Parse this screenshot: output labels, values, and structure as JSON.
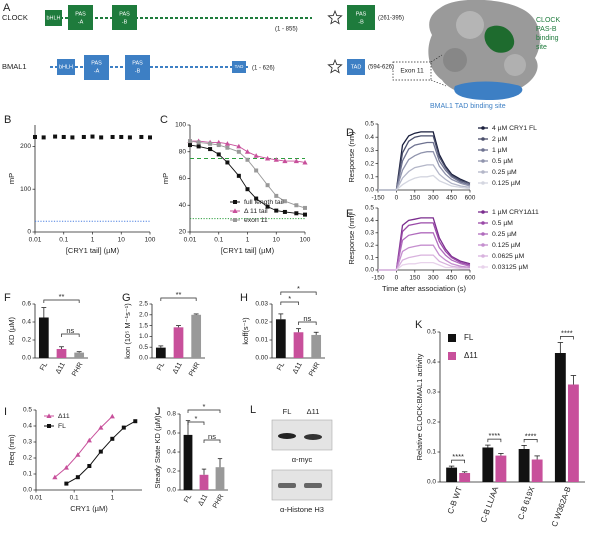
{
  "panels": {
    "A": {
      "panel_label": "A",
      "clock": {
        "name": "CLOCK",
        "domains": [
          [
            "bHLH"
          ],
          [
            "PAS",
            "-A"
          ],
          [
            "PAS",
            "-B"
          ]
        ],
        "range": "(1 - 855)",
        "fragment": [
          "PAS",
          "-B"
        ],
        "fragment_range": "(261-395)"
      },
      "bmal1": {
        "name": "BMAL1",
        "domains": [
          [
            "bHLH"
          ],
          [
            "PAS",
            "-A"
          ],
          [
            "PAS",
            "-B"
          ],
          [
            "TAD"
          ]
        ],
        "range": "(1 - 626)",
        "fragment": [
          "TAD"
        ],
        "fragment_range": "(594-626)"
      },
      "structure": {
        "clock_site": [
          "CLOCK",
          "PAS-B",
          "binding",
          "site"
        ],
        "exon": "Exon 11",
        "bmal1_site": "BMAL1 TAD binding site"
      }
    },
    "L": {
      "panel_label": "L",
      "lanes": [
        "FL",
        "Δ11"
      ],
      "blots": [
        "α-myc",
        "α-Histone H3"
      ]
    }
  },
  "chart_data": [
    {
      "type": "scatter",
      "panel_label": "B",
      "x": [
        0.01,
        0.02,
        0.05,
        0.1,
        0.2,
        0.5,
        1,
        2,
        5,
        10,
        20,
        50,
        100
      ],
      "values": [
        222,
        221,
        223,
        222,
        221,
        222,
        223,
        221,
        222,
        222,
        221,
        222,
        221
      ],
      "color": "#111111",
      "marker": "square",
      "xlog": true,
      "xlim": [
        0.01,
        100
      ],
      "xticks": [
        0.01,
        0.1,
        1,
        10,
        100
      ],
      "ylim": [
        0,
        250
      ],
      "yticks": [
        0,
        100,
        200
      ],
      "x_label": "[CRY1 tail] (µM)",
      "y_label": "mP",
      "reference_lines": [
        {
          "value": 25,
          "color": "#4a7fe0",
          "dash": "dotted"
        }
      ]
    },
    {
      "type": "scatter",
      "panel_label": "C",
      "x": [
        0.01,
        0.02,
        0.05,
        0.1,
        0.2,
        0.5,
        1,
        2,
        5,
        10,
        20,
        50,
        100
      ],
      "connect": true,
      "series": [
        {
          "name": "full length tail",
          "color": "#111111",
          "marker": "square",
          "values": [
            85,
            84,
            82,
            78,
            72,
            62,
            52,
            45,
            39,
            36,
            35,
            34,
            33
          ]
        },
        {
          "name": "Δ 11 tail",
          "color": "#c8509b",
          "marker": "triangle",
          "values": [
            88,
            88,
            87,
            87,
            86,
            84,
            80,
            77,
            75,
            74,
            73,
            73,
            72
          ]
        },
        {
          "name": "exon 11",
          "color": "#999999",
          "marker": "square",
          "values": [
            88,
            87,
            86,
            85,
            83,
            80,
            74,
            66,
            55,
            47,
            43,
            40,
            38
          ]
        }
      ],
      "legend": "lower right",
      "xlog": true,
      "xlim": [
        0.01,
        100
      ],
      "xticks": [
        0.01,
        0.1,
        1,
        10,
        100
      ],
      "ylim": [
        20,
        100
      ],
      "yticks": [
        20,
        40,
        60,
        80,
        100
      ],
      "x_label": "[CRY1 tail] (µM)",
      "y_label": "mP",
      "reference_lines": [
        {
          "value": 75,
          "color": "#2e9e3e",
          "dash": "dashed"
        },
        {
          "value": 30,
          "color": "#2e9e3e",
          "dash": "dotted"
        }
      ]
    },
    {
      "type": "line",
      "panel_label": "D",
      "x": [
        -150,
        -75,
        0,
        50,
        100,
        150,
        200,
        250,
        300,
        350,
        400,
        450,
        525,
        600
      ],
      "series": [
        {
          "name": "4 µM CRY1 FL",
          "color": "#1a1f3d",
          "values": [
            0,
            0,
            0,
            0.34,
            0.41,
            0.43,
            0.44,
            0.44,
            0.44,
            0.27,
            0.18,
            0.12,
            0.08,
            0.05
          ]
        },
        {
          "name": "2 µM",
          "color": "#4a4f6b",
          "values": [
            0,
            0,
            0,
            0.28,
            0.37,
            0.4,
            0.41,
            0.41,
            0.41,
            0.25,
            0.17,
            0.11,
            0.07,
            0.05
          ]
        },
        {
          "name": "1 µM",
          "color": "#6e7290",
          "values": [
            0,
            0,
            0,
            0.22,
            0.31,
            0.34,
            0.35,
            0.36,
            0.36,
            0.22,
            0.15,
            0.1,
            0.06,
            0.04
          ]
        },
        {
          "name": "0.5 µM",
          "color": "#9094ad",
          "values": [
            0,
            0,
            0,
            0.15,
            0.23,
            0.26,
            0.28,
            0.29,
            0.29,
            0.18,
            0.12,
            0.08,
            0.05,
            0.03
          ]
        },
        {
          "name": "0.25 µM",
          "color": "#b3b6c8",
          "values": [
            0,
            0,
            0,
            0.09,
            0.14,
            0.17,
            0.18,
            0.19,
            0.19,
            0.12,
            0.08,
            0.05,
            0.03,
            0.02
          ]
        },
        {
          "name": "0.125 µM",
          "color": "#d4d6e0",
          "values": [
            0,
            0,
            0,
            0.04,
            0.07,
            0.09,
            0.1,
            0.1,
            0.11,
            0.07,
            0.05,
            0.03,
            0.02,
            0.01
          ]
        }
      ],
      "legend": "right",
      "xlim": [
        -150,
        600
      ],
      "xticks": [
        -150,
        0,
        150,
        300,
        450,
        600
      ],
      "ylim": [
        0,
        0.5
      ],
      "yticks": [
        {
          "value": 0,
          "label": "0.0"
        },
        0.1,
        0.2,
        0.3,
        0.4,
        0.5
      ],
      "y_label": "Response (nm)"
    },
    {
      "type": "line",
      "panel_label": "E",
      "x": [
        -150,
        -75,
        0,
        50,
        100,
        150,
        200,
        250,
        300,
        350,
        400,
        450,
        525,
        600
      ],
      "series": [
        {
          "name": "1 µM CRY1Δ11",
          "color": "#7b2d8e",
          "values": [
            0,
            0,
            0,
            0.36,
            0.4,
            0.41,
            0.42,
            0.42,
            0.42,
            0.26,
            0.17,
            0.11,
            0.07,
            0.05
          ]
        },
        {
          "name": "0.5 µM",
          "color": "#9a4aa8",
          "values": [
            0,
            0,
            0,
            0.31,
            0.36,
            0.37,
            0.38,
            0.38,
            0.38,
            0.23,
            0.15,
            0.1,
            0.06,
            0.04
          ]
        },
        {
          "name": "0.25 µM",
          "color": "#b06bbd",
          "values": [
            0,
            0,
            0,
            0.24,
            0.28,
            0.29,
            0.3,
            0.3,
            0.3,
            0.18,
            0.12,
            0.08,
            0.05,
            0.03
          ]
        },
        {
          "name": "0.125 µM",
          "color": "#c58fcf",
          "values": [
            0,
            0,
            0,
            0.15,
            0.18,
            0.19,
            0.2,
            0.2,
            0.2,
            0.12,
            0.08,
            0.05,
            0.03,
            0.02
          ]
        },
        {
          "name": "0.0625 µM",
          "color": "#d8b2de",
          "values": [
            0,
            0,
            0,
            0.08,
            0.1,
            0.11,
            0.12,
            0.12,
            0.12,
            0.07,
            0.05,
            0.03,
            0.02,
            0.01
          ]
        },
        {
          "name": "0.03125 µM",
          "color": "#e8d3eb",
          "values": [
            0,
            0,
            0,
            0.04,
            0.05,
            0.05,
            0.06,
            0.06,
            0.06,
            0.04,
            0.02,
            0.02,
            0.01,
            0.01
          ]
        }
      ],
      "legend": "right",
      "xlim": [
        -150,
        600
      ],
      "xticks": [
        -150,
        0,
        150,
        300,
        450,
        600
      ],
      "ylim": [
        0,
        0.5
      ],
      "yticks": [
        {
          "value": 0,
          "label": "0.0"
        },
        0.1,
        0.2,
        0.3,
        0.4,
        0.5
      ],
      "y_label": "Response (nm)",
      "x_label": "Time after association (s)"
    },
    {
      "type": "bar",
      "panel_label": "F",
      "categories": [
        "FL",
        "Δ11",
        "PHR"
      ],
      "values": [
        0.45,
        0.1,
        0.06
      ],
      "errors": [
        0.11,
        0.025,
        0.01
      ],
      "colors": [
        "#111111",
        "#c8509b",
        "#999999"
      ],
      "ylim": [
        0,
        0.6
      ],
      "yticks": [
        {
          "value": 0,
          "label": "0.0"
        },
        0.2,
        0.4,
        0.6
      ],
      "y_label": "KD (µM)",
      "significance": [
        "**",
        "ns"
      ]
    },
    {
      "type": "bar",
      "panel_label": "G",
      "categories": [
        "FL",
        "Δ11",
        "PHR"
      ],
      "values": [
        0.48,
        1.42,
        2.0
      ],
      "errors": [
        0.08,
        0.08,
        0.04
      ],
      "colors": [
        "#111111",
        "#c8509b",
        "#999999"
      ],
      "ylim": [
        0,
        2.5
      ],
      "yticks": [
        {
          "value": 0,
          "label": "0.0"
        },
        0.5,
        {
          "value": 1,
          "label": "1.0"
        },
        1.5,
        {
          "value": 2,
          "label": "2.0"
        },
        2.5
      ],
      "y_label": "kon (10⁵ M⁻¹s⁻¹)",
      "significance": [
        "**"
      ]
    },
    {
      "type": "bar",
      "panel_label": "H",
      "categories": [
        "FL",
        "Δ11",
        "PHR"
      ],
      "values": [
        0.0215,
        0.0143,
        0.0128
      ],
      "errors": [
        0.003,
        0.002,
        0.0015
      ],
      "colors": [
        "#111111",
        "#c8509b",
        "#999999"
      ],
      "ylim": [
        0,
        0.03
      ],
      "yticks": [
        {
          "value": 0,
          "label": "0.00"
        },
        0.01,
        0.02,
        0.03
      ],
      "y_label": "koff(s⁻¹)",
      "significance": [
        "*",
        "*",
        "ns"
      ]
    },
    {
      "type": "line",
      "panel_label": "I",
      "series": [
        {
          "name": "Δ11",
          "color": "#c8509b",
          "marker": "triangle",
          "x": [
            0.03125,
            0.0625,
            0.125,
            0.25,
            0.5,
            1
          ],
          "values": [
            0.08,
            0.14,
            0.22,
            0.31,
            0.39,
            0.46
          ]
        },
        {
          "name": "FL",
          "color": "#111111",
          "marker": "square",
          "x": [
            0.0625,
            0.125,
            0.25,
            0.5,
            1,
            2,
            4
          ],
          "values": [
            0.04,
            0.08,
            0.15,
            0.24,
            0.32,
            0.39,
            0.43
          ]
        }
      ],
      "legend": "upper left",
      "xlog": true,
      "xlim": [
        0.01,
        6
      ],
      "xticks": [
        0.01,
        0.1,
        1
      ],
      "ylim": [
        0,
        0.5
      ],
      "yticks": [
        {
          "value": 0,
          "label": "0.0"
        },
        0.1,
        0.2,
        0.3,
        0.4,
        0.5
      ],
      "x_label": "CRY1 (µM)",
      "y_label": "Req (nm)"
    },
    {
      "type": "bar",
      "panel_label": "J",
      "categories": [
        "FL",
        "Δ11",
        "PHR"
      ],
      "values": [
        0.58,
        0.16,
        0.24
      ],
      "errors": [
        0.15,
        0.06,
        0.09
      ],
      "colors": [
        "#111111",
        "#c8509b",
        "#999999"
      ],
      "ylim": [
        0,
        0.8
      ],
      "yticks": [
        {
          "value": 0,
          "label": "0.0"
        },
        0.2,
        0.4,
        0.6,
        0.8
      ],
      "y_label": "Steady State KD (µM)",
      "significance": [
        "*",
        "*",
        "ns"
      ]
    },
    {
      "type": "bar",
      "panel_label": "K",
      "categories": [
        "C-B WT",
        "C-B LL/AA",
        "C-B 619X",
        "C W362A-B"
      ],
      "series": [
        {
          "name": "FL",
          "color": "#111111",
          "values": [
            0.048,
            0.115,
            0.11,
            0.43
          ],
          "errors": [
            0.005,
            0.008,
            0.012,
            0.035
          ]
        },
        {
          "name": "Δ11",
          "color": "#c8509b",
          "values": [
            0.03,
            0.088,
            0.075,
            0.325
          ],
          "errors": [
            0.004,
            0.007,
            0.012,
            0.03
          ]
        }
      ],
      "legend": "upper left",
      "ylim": [
        0,
        0.5
      ],
      "yticks": [
        {
          "value": 0,
          "label": "0.0"
        },
        0.1,
        0.2,
        0.3,
        0.4,
        0.5
      ],
      "y_label": "Relative CLOCK:BMAL1 activity",
      "significance": [
        "****",
        "****",
        "****",
        "****"
      ]
    }
  ]
}
